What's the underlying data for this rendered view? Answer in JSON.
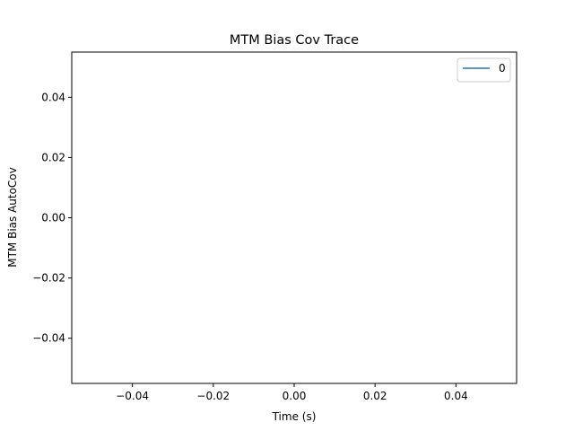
{
  "chart_data": {
    "type": "line",
    "title": "MTM Bias Cov Trace",
    "xlabel": "Time (s)",
    "ylabel": "MTM Bias AutoCov",
    "xlim": [
      -0.055,
      0.055
    ],
    "ylim": [
      -0.055,
      0.055
    ],
    "xticks": [
      -0.04,
      -0.02,
      0.0,
      0.02,
      0.04
    ],
    "xtick_labels": [
      "−0.04",
      "−0.02",
      "0.00",
      "0.02",
      "0.04"
    ],
    "yticks": [
      -0.04,
      -0.02,
      0.0,
      0.02,
      0.04
    ],
    "ytick_labels": [
      "−0.04",
      "−0.02",
      "0.00",
      "0.02",
      "0.04"
    ],
    "grid": false,
    "legend_position": "top-right",
    "series": [
      {
        "name": "0",
        "color": "#1f77b4",
        "x": [],
        "y": []
      }
    ]
  }
}
